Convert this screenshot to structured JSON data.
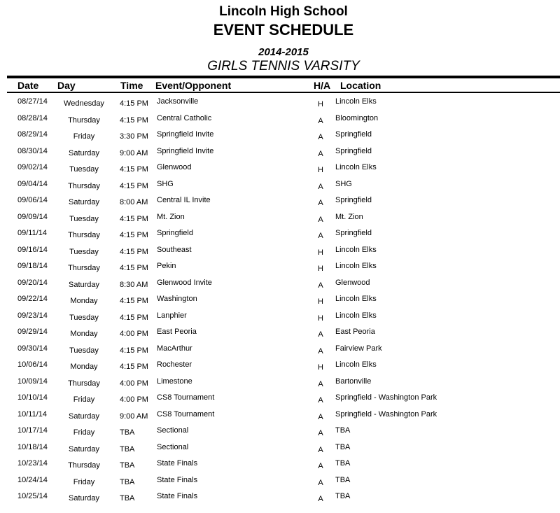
{
  "header": {
    "school": "Lincoln High School",
    "title": "EVENT SCHEDULE",
    "season": "2014-2015",
    "team": "GIRLS TENNIS VARSITY"
  },
  "columns": {
    "date": "Date",
    "day": "Day",
    "time": "Time",
    "event": "Event/Opponent",
    "ha": "H/A",
    "location": "Location"
  },
  "rows": [
    [
      "08/27/14",
      "Wednesday",
      "4:15 PM",
      "Jacksonville",
      "H",
      "Lincoln Elks"
    ],
    [
      "08/28/14",
      "Thursday",
      "4:15 PM",
      "Central Catholic",
      "A",
      "Bloomington"
    ],
    [
      "08/29/14",
      "Friday",
      "3:30 PM",
      "Springfield Invite",
      "A",
      "Springfield"
    ],
    [
      "08/30/14",
      "Saturday",
      "9:00 AM",
      "Springfield Invite",
      "A",
      "Springfield"
    ],
    [
      "09/02/14",
      "Tuesday",
      "4:15 PM",
      "Glenwood",
      "H",
      "Lincoln Elks"
    ],
    [
      "09/04/14",
      "Thursday",
      "4:15 PM",
      "SHG",
      "A",
      "SHG"
    ],
    [
      "09/06/14",
      "Saturday",
      "8:00 AM",
      "Central IL Invite",
      "A",
      "Springfield"
    ],
    [
      "09/09/14",
      "Tuesday",
      "4:15 PM",
      "Mt. Zion",
      "A",
      "Mt. Zion"
    ],
    [
      "09/11/14",
      "Thursday",
      "4:15 PM",
      "Springfield",
      "A",
      "Springfield"
    ],
    [
      "09/16/14",
      "Tuesday",
      "4:15 PM",
      "Southeast",
      "H",
      "Lincoln Elks"
    ],
    [
      "09/18/14",
      "Thursday",
      "4:15 PM",
      "Pekin",
      "H",
      "Lincoln Elks"
    ],
    [
      "09/20/14",
      "Saturday",
      "8:30 AM",
      "Glenwood Invite",
      "A",
      "Glenwood"
    ],
    [
      "09/22/14",
      "Monday",
      "4:15 PM",
      "Washington",
      "H",
      "Lincoln Elks"
    ],
    [
      "09/23/14",
      "Tuesday",
      "4:15 PM",
      "Lanphier",
      "H",
      "Lincoln Elks"
    ],
    [
      "09/29/14",
      "Monday",
      "4:00 PM",
      "East Peoria",
      "A",
      "East Peoria"
    ],
    [
      "09/30/14",
      "Tuesday",
      "4:15 PM",
      "MacArthur",
      "A",
      "Fairview Park"
    ],
    [
      "10/06/14",
      "Monday",
      "4:15 PM",
      "Rochester",
      "H",
      "Lincoln Elks"
    ],
    [
      "10/09/14",
      "Thursday",
      "4:00 PM",
      "Limestone",
      "A",
      "Bartonville"
    ],
    [
      "10/10/14",
      "Friday",
      "4:00 PM",
      "CS8 Tournament",
      "A",
      "Springfield - Washington Park"
    ],
    [
      "10/11/14",
      "Saturday",
      "9:00 AM",
      "CS8 Tournament",
      "A",
      "Springfield - Washington Park"
    ],
    [
      "10/17/14",
      "Friday",
      "TBA",
      "Sectional",
      "A",
      "TBA"
    ],
    [
      "10/18/14",
      "Saturday",
      "TBA",
      "Sectional",
      "A",
      "TBA"
    ],
    [
      "10/23/14",
      "Thursday",
      "TBA",
      "State Finals",
      "A",
      "TBA"
    ],
    [
      "10/24/14",
      "Friday",
      "TBA",
      "State Finals",
      "A",
      "TBA"
    ],
    [
      "10/25/14",
      "Saturday",
      "TBA",
      "State Finals",
      "A",
      "TBA"
    ]
  ]
}
